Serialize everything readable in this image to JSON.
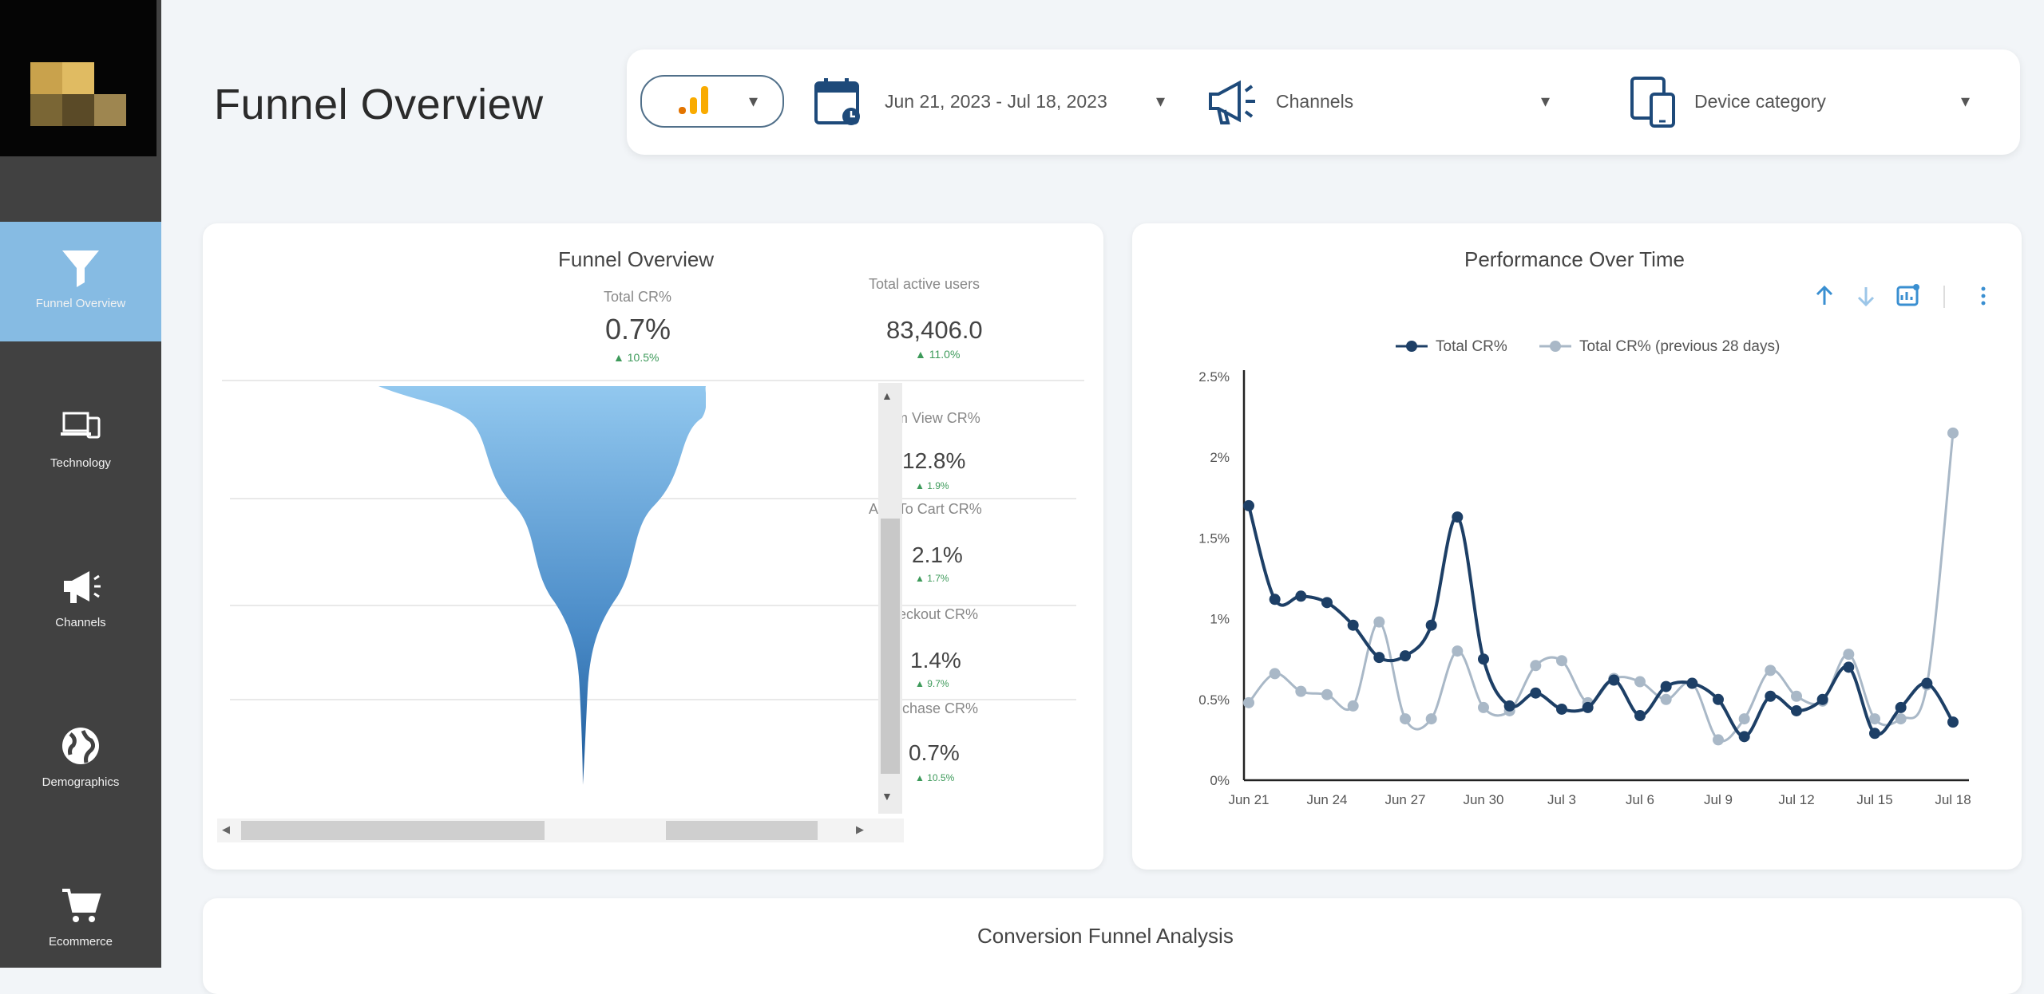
{
  "sidebar": {
    "items": [
      {
        "label": "Funnel Overview",
        "icon": "funnel-icon",
        "active": true
      },
      {
        "label": "Technology",
        "icon": "devices-icon",
        "active": false
      },
      {
        "label": "Channels",
        "icon": "megaphone-icon",
        "active": false
      },
      {
        "label": "Demographics",
        "icon": "globe-icon",
        "active": false
      },
      {
        "label": "Ecommerce",
        "icon": "cart-icon",
        "active": false
      }
    ]
  },
  "header": {
    "title": "Funnel Overview",
    "filters": {
      "date_range": "Jun 21, 2023 - Jul 18, 2023",
      "channels": "Channels",
      "device": "Device category",
      "caret": "▾"
    }
  },
  "funnel_card": {
    "title": "Funnel Overview",
    "total_cr_label": "Total CR%",
    "total_cr_value": "0.7%",
    "total_cr_delta": "▲ 10.5%",
    "active_users_label": "Total active users",
    "active_users_value": "83,406.0",
    "active_users_delta": "▲ 11.0%",
    "stages": [
      {
        "label": "Item View CR%",
        "value": "12.8%",
        "delta": "▲ 1.9%"
      },
      {
        "label": "Add To Cart CR%",
        "value": "2.1%",
        "delta": "▲ 1.7%"
      },
      {
        "label": "Checkout CR%",
        "value": "1.4%",
        "delta": "▲ 9.7%"
      },
      {
        "label": "Purchase CR%",
        "value": "0.7%",
        "delta": "▲ 10.5%"
      }
    ]
  },
  "performance_card": {
    "title": "Performance Over Time"
  },
  "bottom_card": {
    "title": "Conversion Funnel Analysis"
  },
  "colors": {
    "accent": "#86bbe3",
    "series_current": "#1d3f66",
    "series_previous": "#a9b8c7"
  },
  "chart_data": {
    "type": "line",
    "title": "Performance Over Time",
    "x": [
      "Jun 21",
      "Jun 22",
      "Jun 23",
      "Jun 24",
      "Jun 25",
      "Jun 26",
      "Jun 27",
      "Jun 28",
      "Jun 29",
      "Jun 30",
      "Jul 1",
      "Jul 2",
      "Jul 3",
      "Jul 4",
      "Jul 5",
      "Jul 6",
      "Jul 7",
      "Jul 8",
      "Jul 9",
      "Jul 10",
      "Jul 11",
      "Jul 12",
      "Jul 13",
      "Jul 14",
      "Jul 15",
      "Jul 16",
      "Jul 17",
      "Jul 18"
    ],
    "x_tick_labels": [
      "Jun 21",
      "Jun 24",
      "Jun 27",
      "Jun 30",
      "Jul 3",
      "Jul 6",
      "Jul 9",
      "Jul 12",
      "Jul 15",
      "Jul 18"
    ],
    "series": [
      {
        "name": "Total CR%",
        "values": [
          1.7,
          1.12,
          1.14,
          1.1,
          0.96,
          0.76,
          0.77,
          0.96,
          1.63,
          0.75,
          0.46,
          0.54,
          0.44,
          0.45,
          0.62,
          0.4,
          0.58,
          0.6,
          0.5,
          0.27,
          0.52,
          0.43,
          0.5,
          0.7,
          0.29,
          0.45,
          0.6,
          0.36
        ]
      },
      {
        "name": "Total CR% (previous 28 days)",
        "values": [
          0.48,
          0.66,
          0.55,
          0.53,
          0.46,
          0.98,
          0.38,
          0.38,
          0.8,
          0.45,
          0.43,
          0.71,
          0.74,
          0.48,
          0.63,
          0.61,
          0.5,
          0.6,
          0.25,
          0.38,
          0.68,
          0.52,
          0.49,
          0.78,
          0.38,
          0.38,
          0.59,
          2.15
        ]
      }
    ],
    "y_tick_labels": [
      "0%",
      "0.5%",
      "1%",
      "1.5%",
      "2%",
      "2.5%"
    ],
    "ylim": [
      0,
      2.5
    ],
    "legend_position": "top"
  }
}
